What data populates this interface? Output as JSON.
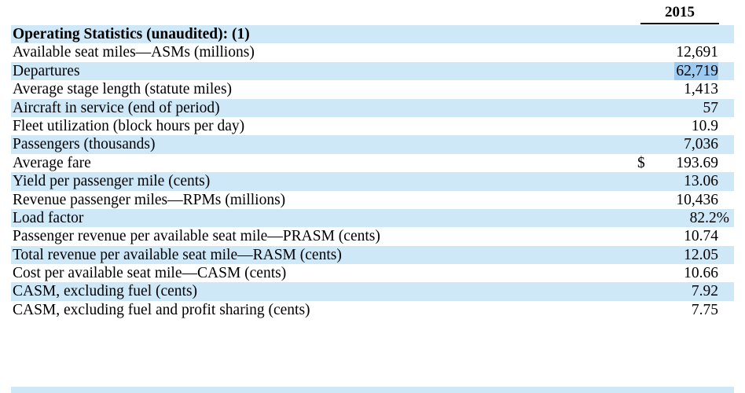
{
  "table": {
    "year": "2015",
    "section_title": "Operating Statistics (unaudited): (1)",
    "rows": [
      {
        "label": "Available seat miles—ASMs (millions)",
        "value": "12,691"
      },
      {
        "label": "Departures",
        "value": "62,719"
      },
      {
        "label": "Average stage length (statute miles)",
        "value": "1,413"
      },
      {
        "label": "Aircraft in service (end of period)",
        "value": "57"
      },
      {
        "label": "Fleet utilization (block hours per day)",
        "value": "10.9"
      },
      {
        "label": "Passengers (thousands)",
        "value": "7,036"
      },
      {
        "label": "Average fare",
        "currency": "$",
        "value": "193.69"
      },
      {
        "label": "Yield per passenger mile (cents)",
        "value": "13.06"
      },
      {
        "label": "Revenue passenger miles—RPMs (millions)",
        "value": "10,436"
      },
      {
        "label": "Load factor",
        "value": "82.2%"
      },
      {
        "label": "Passenger revenue per available seat mile—PRASM (cents)",
        "value": "10.74"
      },
      {
        "label": "Total revenue per available seat mile—RASM (cents)",
        "value": "12.05"
      },
      {
        "label": "Cost per available seat mile—CASM (cents)",
        "value": "10.66"
      },
      {
        "label": "CASM, excluding fuel (cents)",
        "value": "7.92"
      },
      {
        "label": "CASM, excluding fuel and profit sharing (cents)",
        "value": "7.75"
      }
    ]
  },
  "colors": {
    "row_shade": "#cfe8f8",
    "selection_highlight": "#9fcaf0",
    "text": "#000000"
  }
}
